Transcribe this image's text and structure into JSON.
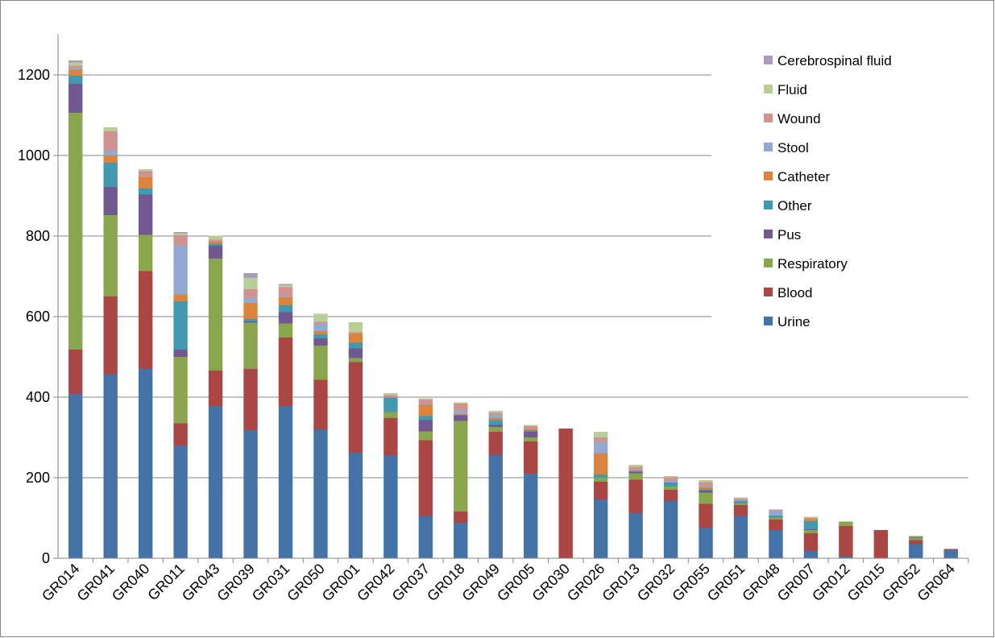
{
  "chart_data": {
    "type": "bar",
    "stacked": true,
    "title": "",
    "xlabel": "",
    "ylabel": "",
    "ylim": [
      0,
      1200
    ],
    "yticks": [
      0,
      200,
      400,
      600,
      800,
      1000,
      1200
    ],
    "grid": true,
    "legend_position": "top-right",
    "categories": [
      "GR014",
      "GR041",
      "GR040",
      "GR011",
      "GR043",
      "GR039",
      "GR031",
      "GR050",
      "GR001",
      "GR042",
      "GR037",
      "GR018",
      "GR049",
      "GR005",
      "GR030",
      "GR026",
      "GR013",
      "GR032",
      "GR055",
      "GR051",
      "GR048",
      "GR007",
      "GR012",
      "GR015",
      "GR052",
      "GR064"
    ],
    "series": [
      {
        "name": "Urine",
        "color": "#4572A7",
        "values": [
          408,
          457,
          470,
          280,
          378,
          318,
          378,
          320,
          262,
          255,
          105,
          88,
          256,
          210,
          0,
          146,
          112,
          143,
          75,
          105,
          70,
          18,
          5,
          0,
          35,
          20
        ]
      },
      {
        "name": "Blood",
        "color": "#AA4643",
        "values": [
          110,
          193,
          243,
          55,
          88,
          152,
          170,
          123,
          225,
          93,
          188,
          28,
          58,
          80,
          322,
          44,
          83,
          27,
          60,
          27,
          26,
          44,
          75,
          70,
          10,
          3
        ]
      },
      {
        "name": "Respiratory",
        "color": "#89A54E",
        "values": [
          588,
          202,
          90,
          165,
          278,
          115,
          35,
          85,
          10,
          15,
          22,
          225,
          12,
          10,
          0,
          10,
          16,
          8,
          28,
          5,
          5,
          8,
          10,
          0,
          6,
          0
        ]
      },
      {
        "name": "Pus",
        "color": "#71588F",
        "values": [
          72,
          70,
          100,
          18,
          32,
          3,
          28,
          18,
          24,
          0,
          28,
          14,
          5,
          14,
          0,
          0,
          3,
          0,
          5,
          0,
          0,
          2,
          0,
          0,
          2,
          0
        ]
      },
      {
        "name": "Other",
        "color": "#4198AF",
        "values": [
          20,
          60,
          15,
          120,
          5,
          6,
          17,
          10,
          14,
          36,
          10,
          0,
          12,
          3,
          0,
          8,
          3,
          10,
          3,
          5,
          5,
          20,
          0,
          0,
          0,
          0
        ]
      },
      {
        "name": "Catheter",
        "color": "#DB843D",
        "values": [
          15,
          18,
          28,
          17,
          5,
          40,
          20,
          8,
          23,
          0,
          28,
          3,
          5,
          3,
          0,
          52,
          0,
          0,
          5,
          0,
          0,
          5,
          0,
          0,
          0,
          0
        ]
      },
      {
        "name": "Stool",
        "color": "#93A9CF",
        "values": [
          5,
          12,
          0,
          122,
          0,
          12,
          3,
          18,
          0,
          0,
          3,
          8,
          8,
          0,
          0,
          28,
          0,
          3,
          3,
          3,
          12,
          0,
          0,
          0,
          0,
          0
        ]
      },
      {
        "name": "Wound",
        "color": "#D19392",
        "values": [
          5,
          48,
          15,
          25,
          5,
          22,
          22,
          5,
          3,
          6,
          10,
          18,
          5,
          8,
          0,
          12,
          10,
          10,
          10,
          3,
          3,
          3,
          0,
          0,
          0,
          0
        ]
      },
      {
        "name": "Fluid",
        "color": "#B9CD96",
        "values": [
          8,
          10,
          5,
          5,
          10,
          28,
          5,
          20,
          25,
          5,
          3,
          3,
          5,
          3,
          0,
          14,
          5,
          3,
          5,
          3,
          0,
          3,
          2,
          0,
          3,
          0
        ]
      },
      {
        "name": "Cerebrospinal fluid",
        "color": "#A99BBD",
        "values": [
          5,
          0,
          0,
          3,
          0,
          12,
          3,
          0,
          0,
          0,
          0,
          0,
          0,
          0,
          0,
          0,
          0,
          0,
          0,
          0,
          0,
          0,
          0,
          0,
          0,
          0
        ]
      }
    ]
  }
}
